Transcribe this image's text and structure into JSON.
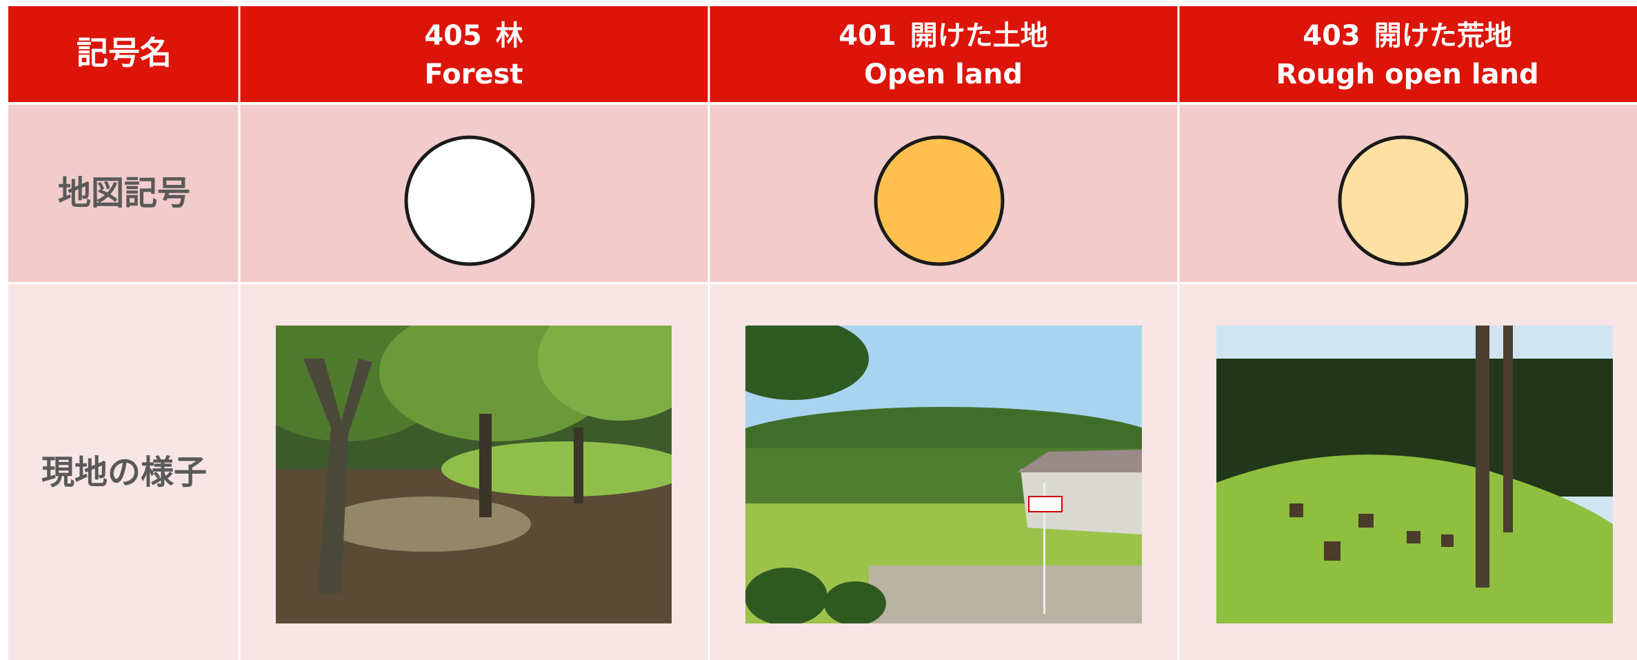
{
  "table": {
    "corner": "記号名",
    "columns": [
      {
        "code": "405",
        "name_ja": "林",
        "name_en": "Forest",
        "color": "#ffffff"
      },
      {
        "code": "401",
        "name_ja": "開けた土地",
        "name_en": "Open land",
        "color": "#ffc04d"
      },
      {
        "code": "403",
        "name_ja": "開けた荒地",
        "name_en": "Rough open land",
        "color": "#ffe0a3"
      }
    ],
    "row_labels": [
      "地図記号",
      "現地の様子"
    ]
  }
}
